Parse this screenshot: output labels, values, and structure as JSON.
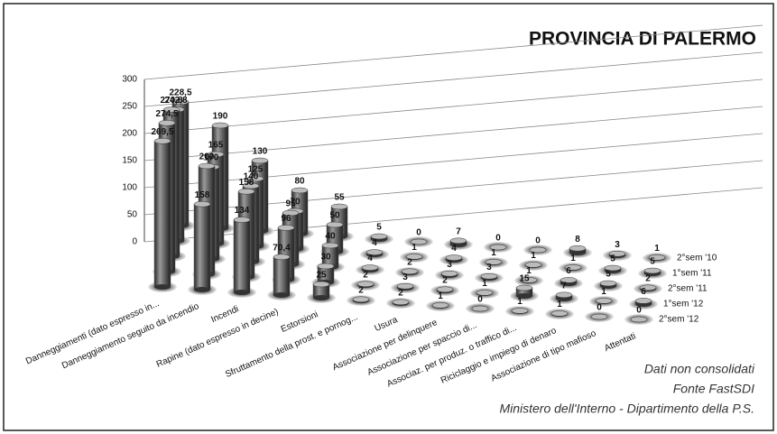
{
  "chart_data": {
    "type": "bar3d",
    "title": "PROVINCIA DI PALERMO",
    "categories": [
      "Danneggiamenti (dato espresso in...",
      "Danneggiamento seguito da incendio",
      "Incendi",
      "Rapine (dato espresso in decine)",
      "Estorsioni",
      "Sfruttamento della prost. e pornog...",
      "Usura",
      "Associazione per delinquere",
      "Associazione per spaccio di...",
      "Associaz. per produz. o traffico di...",
      "Riciclaggio e impiego di denaro",
      "Associazione di tipo mafioso",
      "Attentati"
    ],
    "series": [
      {
        "name": "2°sem '10",
        "color": "#5a5a5a",
        "values": [
          228.5,
          190,
          130,
          80,
          55,
          5,
          0,
          7,
          0,
          0,
          8,
          3,
          1
        ],
        "value_labels": [
          "228,5",
          "190",
          "130",
          "80",
          "55",
          "5",
          "0",
          "7",
          "0",
          "0",
          "8",
          "3",
          "1"
        ]
      },
      {
        "name": "1°sem '11",
        "color": "#5a5a5a",
        "values": [
          242.8,
          165,
          125,
          70,
          50,
          4,
          1,
          4,
          1,
          1,
          1,
          5,
          5
        ],
        "value_labels": [
          "242,8",
          "165",
          "125",
          "70",
          "50",
          "4",
          "1",
          "4",
          "1",
          "1",
          "1",
          "5",
          "5"
        ]
      },
      {
        "name": "2°sem '11",
        "color": "#5a5a5a",
        "values": [
          270.8,
          170,
          140,
          95,
          40,
          4,
          2,
          3,
          3,
          1,
          6,
          5,
          2
        ],
        "value_labels": [
          "270,8",
          "170",
          "140",
          "95",
          "40",
          "4",
          "2",
          "3",
          "3",
          "1",
          "6",
          "5",
          "2"
        ]
      },
      {
        "name": "1°sem '12",
        "color": "#5a5a5a",
        "values": [
          274.5,
          200,
          158,
          96,
          30,
          2,
          3,
          2,
          1,
          15,
          7,
          1,
          6
        ],
        "value_labels": [
          "274,5",
          "200",
          "158",
          "96",
          "30",
          "2",
          "3",
          "2",
          "1",
          "15",
          "7",
          "1",
          "6"
        ]
      },
      {
        "name": "2°sem '12",
        "color": "#5a5a5a",
        "values": [
          269.5,
          158,
          134,
          70.4,
          25,
          2,
          2,
          1,
          0,
          1,
          1,
          0,
          0
        ],
        "value_labels": [
          "269,5",
          "158",
          "134",
          "70,4",
          "25",
          "2",
          "2",
          "1",
          "0",
          "1",
          "1",
          "0",
          "0"
        ]
      }
    ],
    "ylim": [
      0,
      300
    ],
    "yticks": [
      0,
      50,
      100,
      150,
      200,
      250,
      300
    ],
    "grid": true,
    "notes": [
      "Dati non consolidati",
      "Fonte FastSDI",
      "Ministero dell'Interno - Dipartimento della P.S."
    ]
  }
}
